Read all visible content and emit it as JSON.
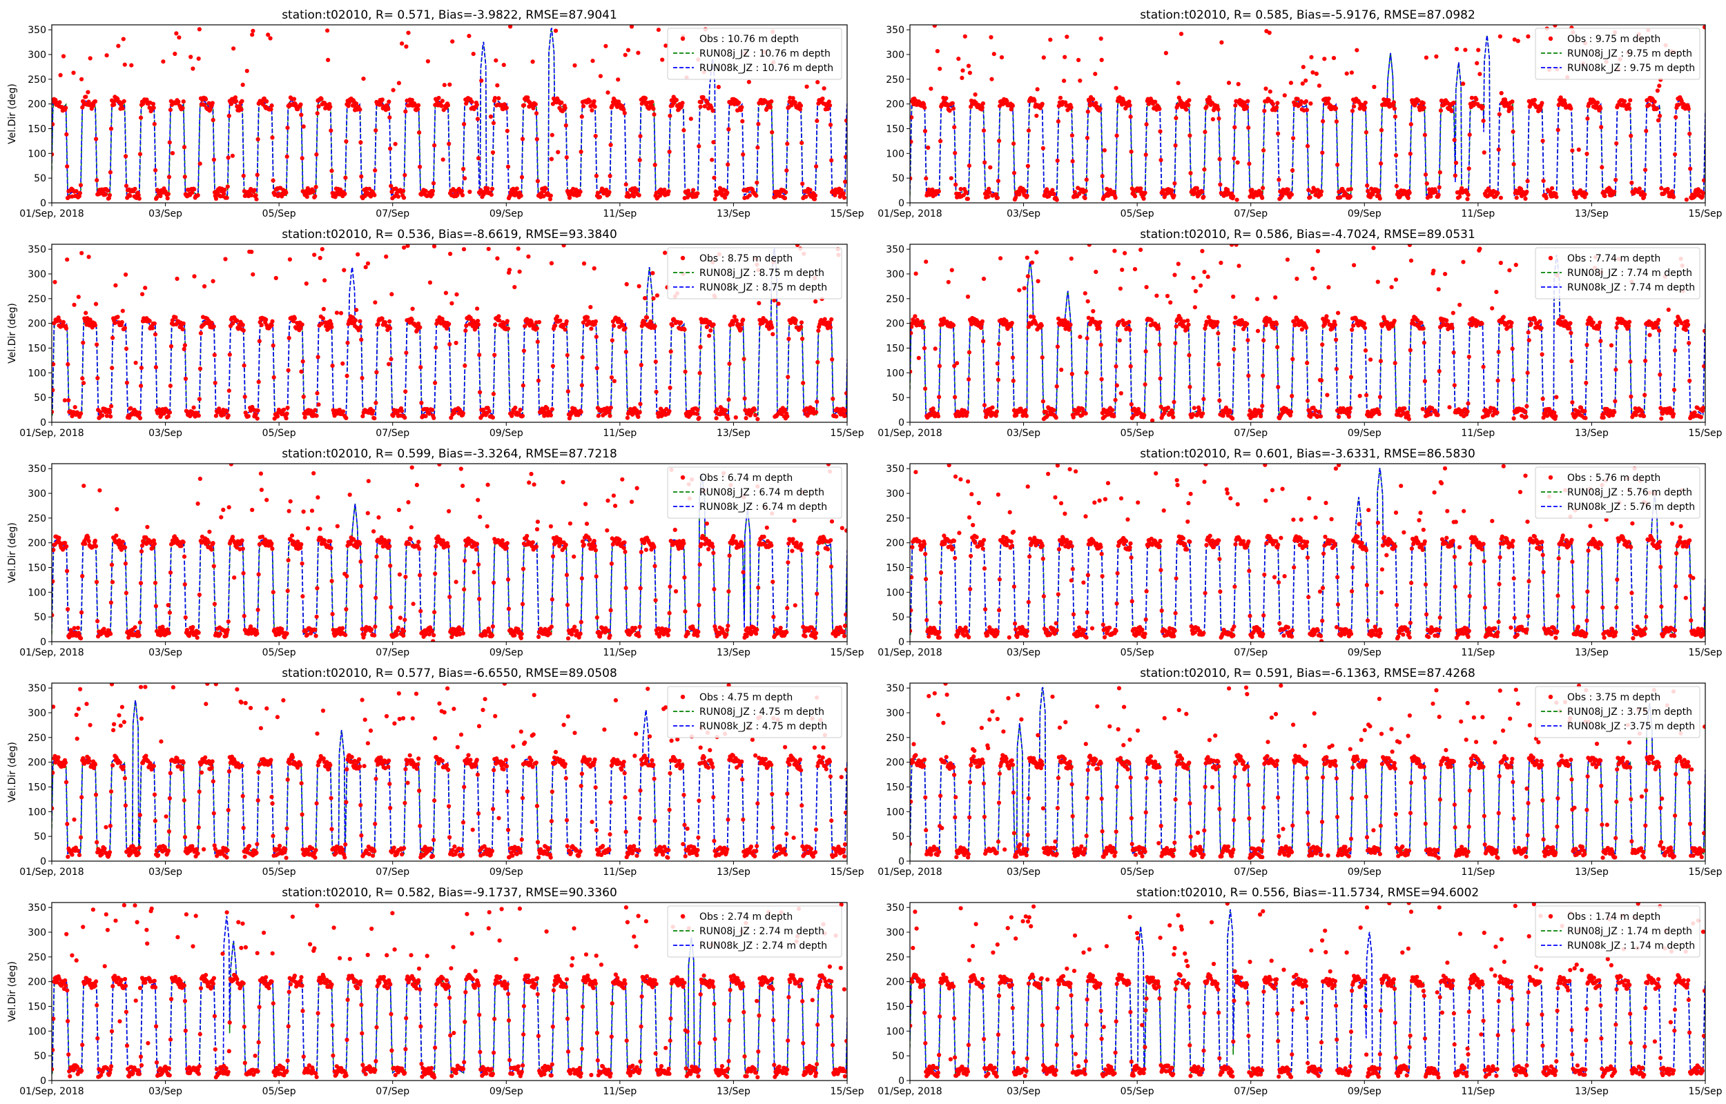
{
  "chart_data": {
    "type": "scatter",
    "layout": {
      "rows": 5,
      "cols": 2
    },
    "ylabel": "Vel.Dir (deg)",
    "ylim": [
      0,
      360
    ],
    "yticks": [
      0,
      50,
      100,
      150,
      200,
      250,
      300,
      350
    ],
    "xlim": [
      "2018-09-01",
      "2018-09-15"
    ],
    "xticks": [
      {
        "x": "2018-09-01",
        "label": "01/Sep, 2018"
      },
      {
        "x": "2018-09-03",
        "label": "03/Sep"
      },
      {
        "x": "2018-09-05",
        "label": "05/Sep"
      },
      {
        "x": "2018-09-07",
        "label": "07/Sep"
      },
      {
        "x": "2018-09-09",
        "label": "09/Sep"
      },
      {
        "x": "2018-09-11",
        "label": "11/Sep"
      },
      {
        "x": "2018-09-13",
        "label": "13/Sep"
      },
      {
        "x": "2018-09-15",
        "label": "15/Sep"
      }
    ],
    "legend_position": "top-right",
    "colors": {
      "obs": "#ff0000",
      "run08j": "#008000",
      "run08k": "#0000ff"
    },
    "panels": [
      {
        "title": "station:t02010, R= 0.571, Bias=-3.9822, RMSE=87.9041",
        "legend": [
          "Obs : 10.76 m depth",
          "RUN08j_JZ : 10.76 m depth",
          "RUN08k_JZ : 10.76 m depth"
        ]
      },
      {
        "title": "station:t02010, R= 0.585, Bias=-5.9176, RMSE=87.0982",
        "legend": [
          "Obs : 9.75 m depth",
          "RUN08j_JZ : 9.75 m depth",
          "RUN08k_JZ : 9.75 m depth"
        ]
      },
      {
        "title": "station:t02010, R= 0.536, Bias=-8.6619, RMSE=93.3840",
        "legend": [
          "Obs : 8.75 m depth",
          "RUN08j_JZ : 8.75 m depth",
          "RUN08k_JZ : 8.75 m depth"
        ]
      },
      {
        "title": "station:t02010, R= 0.586, Bias=-4.7024, RMSE=89.0531",
        "legend": [
          "Obs : 7.74 m depth",
          "RUN08j_JZ : 7.74 m depth",
          "RUN08k_JZ : 7.74 m depth"
        ]
      },
      {
        "title": "station:t02010, R= 0.599, Bias=-3.3264, RMSE=87.7218",
        "legend": [
          "Obs : 6.74 m depth",
          "RUN08j_JZ : 6.74 m depth",
          "RUN08k_JZ : 6.74 m depth"
        ]
      },
      {
        "title": "station:t02010, R= 0.601, Bias=-3.6331, RMSE=86.5830",
        "legend": [
          "Obs : 5.76 m depth",
          "RUN08j_JZ : 5.76 m depth",
          "RUN08k_JZ : 5.76 m depth"
        ]
      },
      {
        "title": "station:t02010, R= 0.577, Bias=-6.6550, RMSE=89.0508",
        "legend": [
          "Obs : 4.75 m depth",
          "RUN08j_JZ : 4.75 m depth",
          "RUN08k_JZ : 4.75 m depth"
        ]
      },
      {
        "title": "station:t02010, R= 0.591, Bias=-6.1363, RMSE=87.4268",
        "legend": [
          "Obs : 3.75 m depth",
          "RUN08j_JZ : 3.75 m depth",
          "RUN08k_JZ : 3.75 m depth"
        ]
      },
      {
        "title": "station:t02010, R= 0.582, Bias=-9.1737, RMSE=90.3360",
        "legend": [
          "Obs : 2.74 m depth",
          "RUN08j_JZ : 2.74 m depth",
          "RUN08k_JZ : 2.74 m depth"
        ]
      },
      {
        "title": "station:t02010, R= 0.556, Bias=-11.5734, RMSE=94.6002",
        "legend": [
          "Obs : 1.74 m depth",
          "RUN08j_JZ : 1.74 m depth",
          "RUN08k_JZ : 1.74 m depth"
        ]
      }
    ]
  }
}
